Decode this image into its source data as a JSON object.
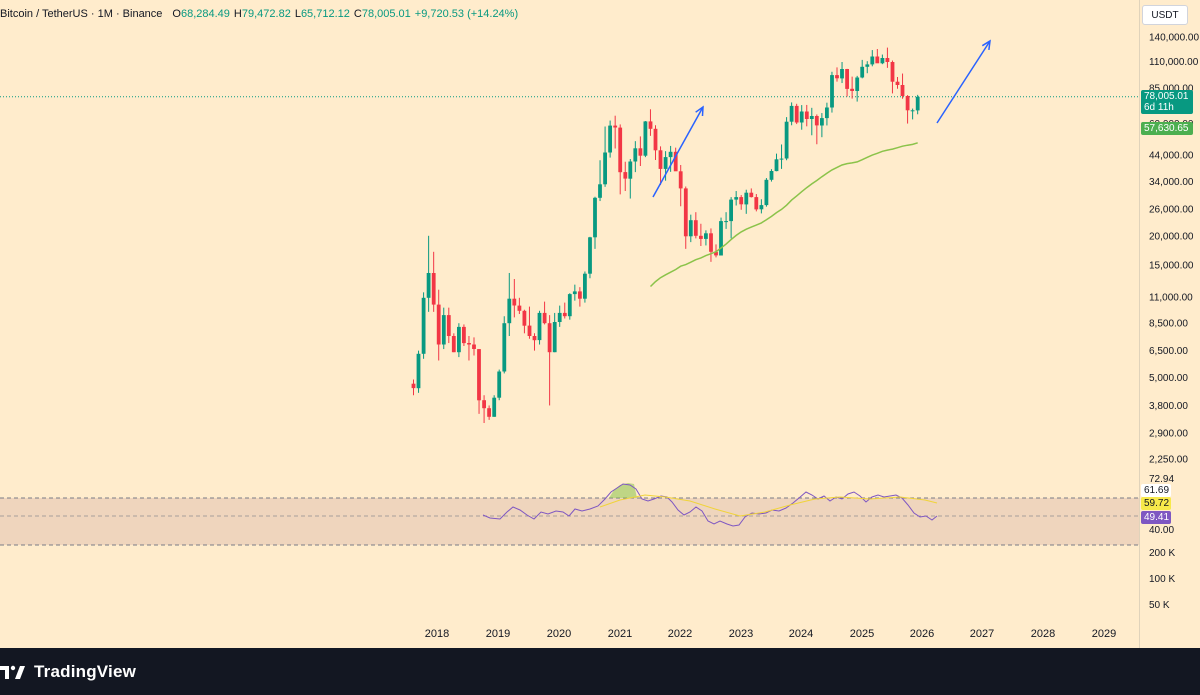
{
  "header": {
    "symbol": "Bitcoin / TetherUS · 1M · Binance",
    "open_label": "O",
    "open": "68,284.49",
    "high_label": "H",
    "high": "79,472.82",
    "low_label": "L",
    "low": "65,712.12",
    "close_label": "C",
    "close": "78,005.01",
    "change": "+9,720.53 (+14.24%)"
  },
  "currency_button": "USDT",
  "price_axis": {
    "ticks": [
      "140,000.00",
      "110,000.00",
      "85,000.00",
      "60,000.00",
      "44,000.00",
      "34,000.00",
      "26,000.00",
      "20,000.00",
      "15,000.00",
      "11,000.00",
      "8,500.00",
      "6,500.00",
      "5,000.00",
      "3,800.00",
      "2,900.00",
      "2,250.00"
    ],
    "last_price": "78,005.01",
    "countdown": "6d 11h",
    "ma_value": "57,630.65"
  },
  "rsi_axis": {
    "top_tick": "72.94",
    "value_a": "61.69",
    "value_b": "59.72",
    "value_c": "49.41",
    "lower_tick": "40.00"
  },
  "volume_axis": {
    "ticks": [
      "200 K",
      "100 K",
      "50 K"
    ]
  },
  "time_axis": {
    "years": [
      "2018",
      "2019",
      "2020",
      "2021",
      "2022",
      "2023",
      "2024",
      "2025",
      "2026",
      "2027",
      "2028",
      "2029"
    ]
  },
  "colors": {
    "background": "#ffeccc",
    "up": "#089981",
    "down": "#f23645",
    "ma": "#8bc34a",
    "rsi": "#7e57c2",
    "rsi_ma": "#f0d43a",
    "arrow": "#2962ff",
    "footer": "#131722"
  },
  "chart_data": {
    "type": "candlestick",
    "interval": "1M",
    "candles_ohlc": [
      [
        4700,
        4900,
        4200,
        4500
      ],
      [
        4500,
        6500,
        4300,
        6300
      ],
      [
        6300,
        11500,
        6000,
        10900
      ],
      [
        10900,
        20000,
        9500,
        13900
      ],
      [
        13900,
        17100,
        9500,
        10200
      ],
      [
        10200,
        11800,
        5900,
        6900
      ],
      [
        6900,
        9900,
        6600,
        9200
      ],
      [
        9200,
        9900,
        7000,
        7500
      ],
      [
        7500,
        7700,
        6400,
        6400
      ],
      [
        6400,
        8500,
        6100,
        8200
      ],
      [
        8200,
        8400,
        6800,
        7000
      ],
      [
        7000,
        7500,
        5900,
        6900
      ],
      [
        6900,
        7400,
        6200,
        6600
      ],
      [
        6600,
        6600,
        3500,
        4000
      ],
      [
        4000,
        4200,
        3200,
        3700
      ],
      [
        3700,
        3800,
        3300,
        3400
      ],
      [
        3400,
        4200,
        3400,
        4100
      ],
      [
        4100,
        5400,
        4000,
        5300
      ],
      [
        5300,
        9100,
        5200,
        8500
      ],
      [
        8500,
        13900,
        7500,
        10800
      ],
      [
        10800,
        13100,
        9000,
        10100
      ],
      [
        10100,
        10900,
        9300,
        9600
      ],
      [
        9600,
        9700,
        7700,
        8300
      ],
      [
        8300,
        10000,
        7300,
        7500
      ],
      [
        7500,
        7700,
        6500,
        7200
      ],
      [
        7200,
        9600,
        6900,
        9400
      ],
      [
        9400,
        10500,
        8400,
        8500
      ],
      [
        8500,
        9200,
        3800,
        6400
      ],
      [
        6400,
        9400,
        6400,
        8600
      ],
      [
        8600,
        10100,
        8200,
        9400
      ],
      [
        9400,
        10400,
        8900,
        9100
      ],
      [
        9100,
        11400,
        8800,
        11300
      ],
      [
        11300,
        12400,
        10600,
        11600
      ],
      [
        11600,
        12100,
        10000,
        10800
      ],
      [
        10800,
        14100,
        10400,
        13800
      ],
      [
        13800,
        19800,
        13200,
        19700
      ],
      [
        19700,
        29300,
        17600,
        29000
      ],
      [
        29000,
        41900,
        28100,
        33100
      ],
      [
        33100,
        58300,
        32300,
        45200
      ],
      [
        45200,
        61800,
        43000,
        58800
      ],
      [
        58800,
        64800,
        47000,
        57700
      ],
      [
        57700,
        59500,
        30000,
        37300
      ],
      [
        37300,
        41300,
        31000,
        35000
      ],
      [
        35000,
        42400,
        28800,
        41400
      ],
      [
        41400,
        50500,
        37300,
        47100
      ],
      [
        47100,
        52900,
        39600,
        43800
      ],
      [
        43800,
        61500,
        43200,
        61300
      ],
      [
        61300,
        69000,
        53200,
        57000
      ],
      [
        57000,
        59000,
        42000,
        46200
      ],
      [
        46200,
        48000,
        32900,
        38500
      ],
      [
        38500,
        45800,
        34300,
        43200
      ],
      [
        43200,
        48200,
        37400,
        45500
      ],
      [
        45500,
        47400,
        37800,
        37600
      ],
      [
        37600,
        40000,
        26700,
        31800
      ],
      [
        31800,
        32400,
        17600,
        19900
      ],
      [
        19900,
        24600,
        18800,
        23300
      ],
      [
        23300,
        25200,
        19500,
        20000
      ],
      [
        20000,
        22500,
        18100,
        19400
      ],
      [
        19400,
        21100,
        18200,
        20500
      ],
      [
        20500,
        21500,
        15500,
        17100
      ],
      [
        17100,
        18400,
        16200,
        16500
      ],
      [
        16500,
        23900,
        16500,
        23100
      ],
      [
        23100,
        25200,
        21400,
        23100
      ],
      [
        23100,
        29200,
        19500,
        28500
      ],
      [
        28500,
        31000,
        26900,
        29200
      ],
      [
        29200,
        29800,
        25800,
        27200
      ],
      [
        27200,
        31400,
        24800,
        30500
      ],
      [
        30500,
        31800,
        29100,
        29200
      ],
      [
        29200,
        30100,
        25400,
        25900
      ],
      [
        25900,
        28600,
        24900,
        27000
      ],
      [
        27000,
        35200,
        26600,
        34600
      ],
      [
        34600,
        38400,
        34000,
        37700
      ],
      [
        37700,
        44700,
        37600,
        42300
      ],
      [
        42300,
        48900,
        38500,
        42600
      ],
      [
        42600,
        63900,
        41900,
        61100
      ],
      [
        61100,
        73800,
        59000,
        71300
      ],
      [
        71300,
        72800,
        59700,
        60600
      ],
      [
        60600,
        71900,
        56500,
        67500
      ],
      [
        67500,
        72000,
        58400,
        62700
      ],
      [
        62700,
        70000,
        53500,
        64600
      ],
      [
        64600,
        65600,
        49000,
        58900
      ],
      [
        58900,
        66500,
        52500,
        63300
      ],
      [
        63300,
        73600,
        58900,
        70200
      ],
      [
        70200,
        99600,
        66800,
        96400
      ],
      [
        96400,
        104000,
        90500,
        93400
      ],
      [
        93400,
        109600,
        89200,
        102400
      ],
      [
        102400,
        102500,
        78200,
        84300
      ],
      [
        84300,
        95000,
        76600,
        82500
      ],
      [
        82500,
        95700,
        74400,
        94200
      ],
      [
        94200,
        111900,
        93400,
        104600
      ],
      [
        104600,
        110500,
        98200,
        107100
      ],
      [
        107100,
        123200,
        105100,
        115700
      ],
      [
        115700,
        124500,
        108700,
        108200
      ],
      [
        108200,
        117900,
        107300,
        114000
      ],
      [
        114000,
        126200,
        103500,
        109600
      ],
      [
        109600,
        111200,
        80600,
        90400
      ],
      [
        90400,
        94600,
        84400,
        87500
      ],
      [
        87500,
        97900,
        76500,
        78600
      ],
      [
        78600,
        79300,
        60000,
        68300
      ],
      [
        68300,
        69500,
        62500,
        68300
      ],
      [
        68300,
        79472.82,
        65712.12,
        78005.01
      ]
    ],
    "ma_series_note": "moving average line shown in green",
    "y_scale": "log",
    "y_ticks": [
      140000,
      110000,
      85000,
      60000,
      44000,
      34000,
      26000,
      20000,
      15000,
      11000,
      8500,
      6500,
      5000,
      3800,
      2900,
      2250
    ],
    "x_years": [
      "2018",
      "2019",
      "2020",
      "2021",
      "2022",
      "2023",
      "2024",
      "2025",
      "2026",
      "2027",
      "2028",
      "2029"
    ],
    "last_price": 78005.01,
    "ma_value": 57630.65,
    "rsi_values": [
      61.69,
      59.72,
      49.41
    ]
  }
}
